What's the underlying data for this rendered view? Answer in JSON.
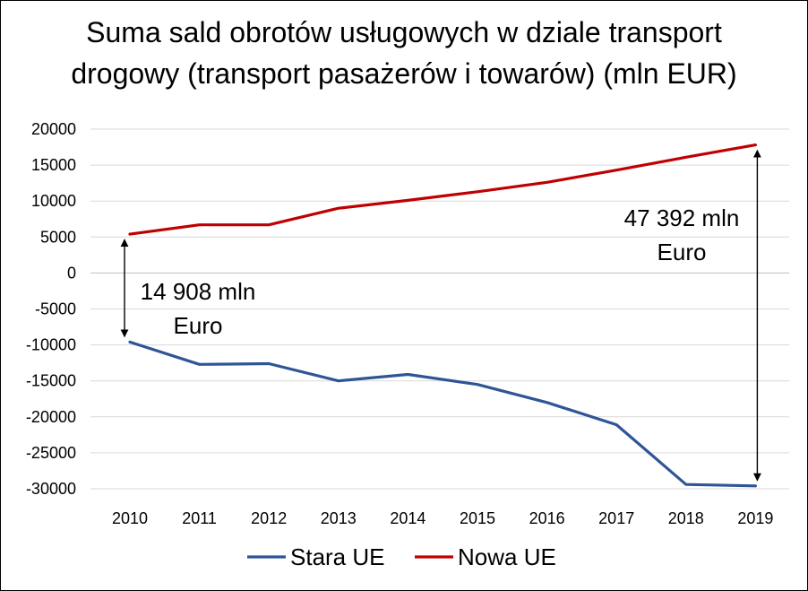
{
  "chart_data": {
    "type": "line",
    "title_lines": [
      "Suma sald obrotów usługowych w dziale transport",
      "drogowy (transport pasażerów i towarów) (mln EUR)"
    ],
    "xlabel": "",
    "ylabel": "",
    "x": [
      "2010",
      "2011",
      "2012",
      "2013",
      "2014",
      "2015",
      "2016",
      "2017",
      "2018",
      "2019"
    ],
    "ylim": [
      -30000,
      20000
    ],
    "yticks": [
      20000,
      15000,
      10000,
      5000,
      0,
      -5000,
      -10000,
      -15000,
      -20000,
      -25000,
      -30000
    ],
    "ytick_labels": [
      "20000",
      "15000",
      "10000",
      "5000",
      "0",
      "-5000",
      "-10000",
      "-15000",
      "-20000",
      "-25000",
      "-30000"
    ],
    "grid": true,
    "legend_position": "bottom",
    "series": [
      {
        "name": "Stara UE",
        "color": "#2F5597",
        "values": [
          -9600,
          -12700,
          -12600,
          -15000,
          -14100,
          -15500,
          -18000,
          -21100,
          -29400,
          -29600
        ]
      },
      {
        "name": "Nowa UE",
        "color": "#C00000",
        "values": [
          5400,
          6700,
          6700,
          9000,
          10100,
          11300,
          12600,
          14300,
          16100,
          17800
        ]
      }
    ],
    "annotations": [
      {
        "lines": [
          "14 908 mln",
          "Euro"
        ],
        "index": 0
      },
      {
        "lines": [
          "47 392 mln",
          "Euro"
        ],
        "index": 9
      }
    ]
  }
}
